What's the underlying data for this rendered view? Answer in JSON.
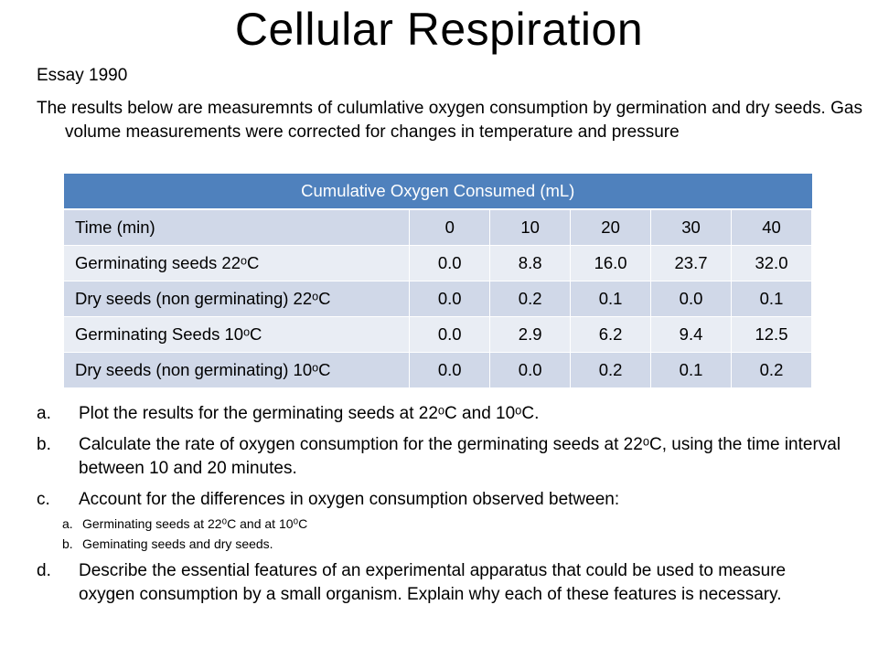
{
  "title": "Cellular Respiration",
  "subtitle": "Essay 1990",
  "intro": "The results below are measuremnts of culumlative oxygen consumption by germination and dry seeds. Gas volume measurements were corrected for changes in temperature and pressure",
  "table": {
    "caption": "Cumulative Oxygen Consumed (mL)",
    "header": [
      "Time (min)",
      "0",
      "10",
      "20",
      "30",
      "40"
    ],
    "rows": [
      [
        "Germinating seeds 22ᵒC",
        "0.0",
        "8.8",
        "16.0",
        "23.7",
        "32.0"
      ],
      [
        "Dry seeds (non germinating) 22ᵒC",
        "0.0",
        "0.2",
        "0.1",
        "0.0",
        "0.1"
      ],
      [
        "Germinating Seeds 10ᵒC",
        "0.0",
        "2.9",
        "6.2",
        "9.4",
        "12.5"
      ],
      [
        "Dry seeds (non germinating) 10ᵒC",
        "0.0",
        "0.0",
        "0.2",
        "0.1",
        "0.2"
      ]
    ]
  },
  "questions": [
    {
      "letter": "a.",
      "text": "Plot the results for the germinating seeds at 22ᵒC and 10ᵒC."
    },
    {
      "letter": "b.",
      "text": "Calculate the rate of oxygen consumption for the germinating seeds at 22ᵒC, using the time interval between 10 and 20 minutes."
    },
    {
      "letter": "c.",
      "text": "Account for the differences in oxygen consumption observed between:",
      "sub": [
        {
          "letter": "a.",
          "text": "Germinating seeds at 22⁰C and at 10⁰C"
        },
        {
          "letter": "b.",
          "text": "Geminating seeds and dry seeds."
        }
      ]
    },
    {
      "letter": "d.",
      "text": "Describe the essential features of an experimental apparatus that could be used to measure oxygen consumption by a small organism. Explain why each of these features is necessary."
    }
  ],
  "colors": {
    "header_fill": "#4f81bd",
    "band_dark": "#d0d8e8",
    "band_light": "#e9edf4"
  }
}
